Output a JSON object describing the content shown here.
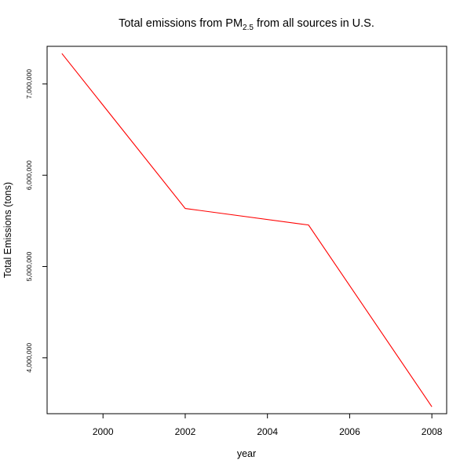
{
  "chart_data": {
    "type": "line",
    "title": {
      "prefix": "Total emissions from PM",
      "subscript": "2.5",
      "suffix": " from all sources in U.S."
    },
    "xlabel": "year",
    "ylabel": "Total Emissions (tons)",
    "x": [
      1999,
      2002,
      2005,
      2008
    ],
    "series": [
      {
        "values": [
          7332967,
          5635780,
          5454703,
          3464206
        ],
        "color": "#ff0000"
      }
    ],
    "xlim": [
      1998.64,
      2008.36
    ],
    "ylim": [
      3388000,
      7412000
    ],
    "x_ticks": [
      {
        "value": 2000,
        "label": "2000"
      },
      {
        "value": 2002,
        "label": "2002"
      },
      {
        "value": 2004,
        "label": "2004"
      },
      {
        "value": 2006,
        "label": "2006"
      },
      {
        "value": 2008,
        "label": "2008"
      }
    ],
    "y_ticks": [
      {
        "value": 4000000,
        "label": "4,000,000"
      },
      {
        "value": 5000000,
        "label": "5,000,000"
      },
      {
        "value": 6000000,
        "label": "6,000,000"
      },
      {
        "value": 7000000,
        "label": "7,000,000"
      }
    ],
    "grid": false,
    "legend": "none"
  }
}
